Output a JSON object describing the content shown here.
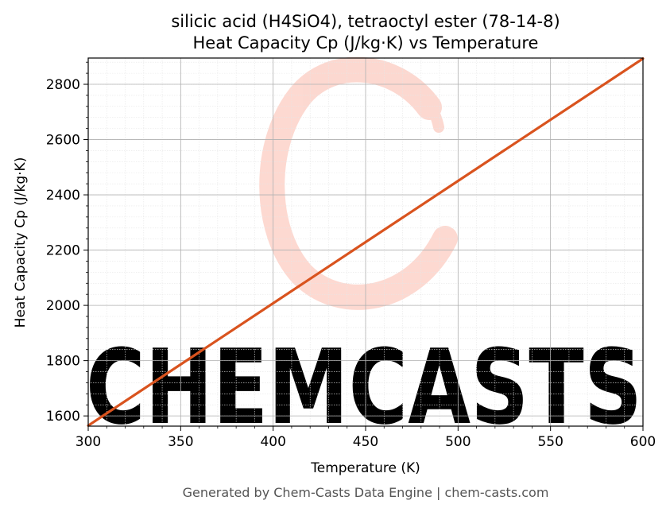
{
  "chart_data": {
    "type": "line",
    "title": "silicic acid (H4SiO4), tetraoctyl ester (78-14-8)",
    "subtitle": "Heat Capacity Cp (J/kg·K) vs Temperature",
    "xlabel": "Temperature (K)",
    "ylabel": "Heat Capacity Cp (J/kg·K)",
    "xlim": [
      300,
      600
    ],
    "ylim": [
      1563,
      2895
    ],
    "xticks": [
      300,
      350,
      400,
      450,
      500,
      550,
      600
    ],
    "yticks": [
      1600,
      1800,
      2000,
      2200,
      2400,
      2600,
      2800
    ],
    "grid": true,
    "series": [
      {
        "x": [
          300,
          600
        ],
        "y": [
          1565,
          2893
        ],
        "color": "#d9531e"
      }
    ]
  },
  "watermark": {
    "text": "CHEMCASTS",
    "color": "#fde0da"
  },
  "footer": "Generated by Chem-Casts Data Engine | chem-casts.com"
}
